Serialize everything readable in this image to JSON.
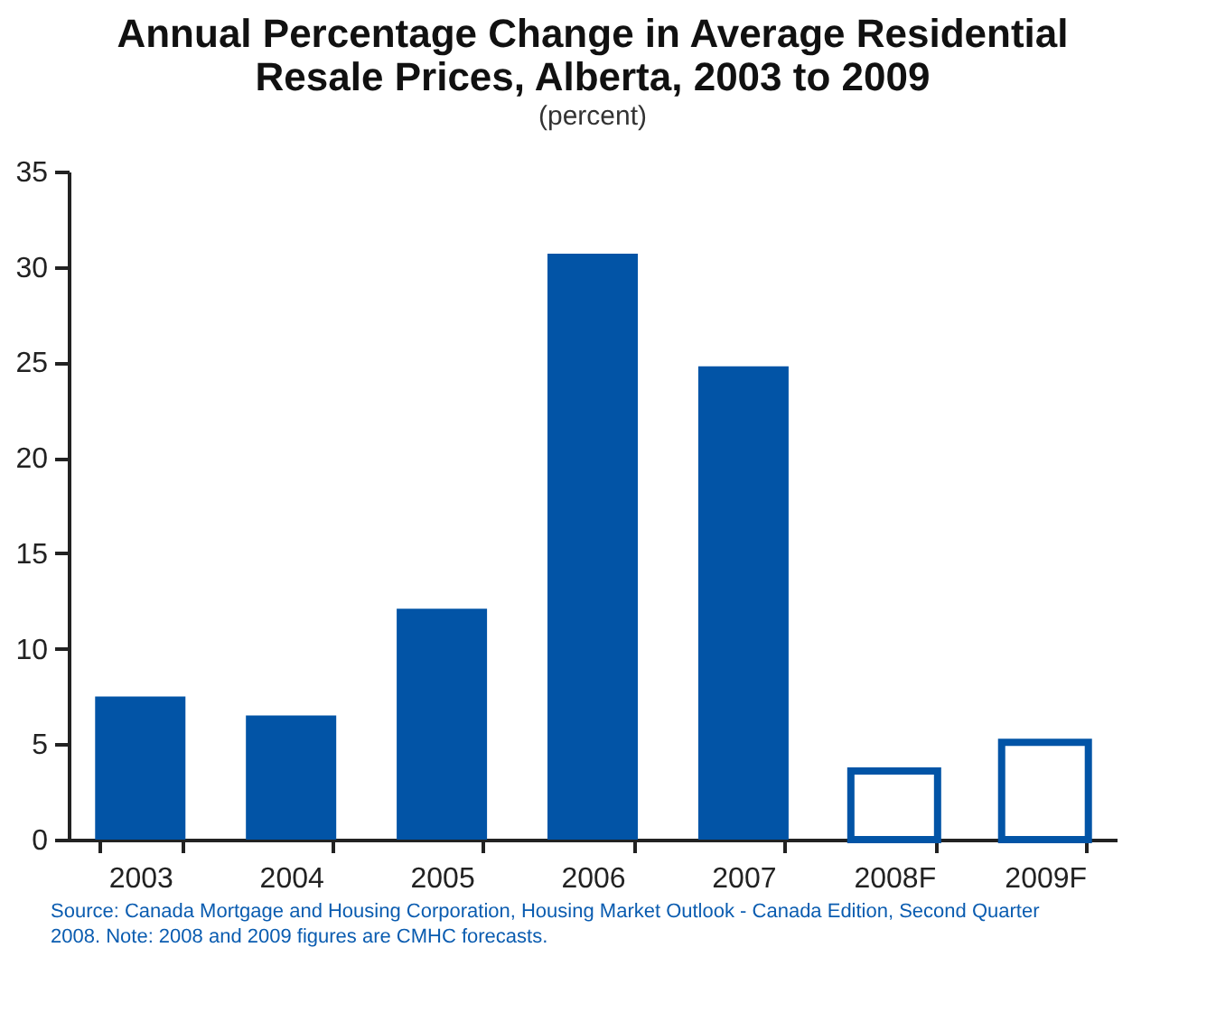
{
  "chart_data": {
    "type": "bar",
    "title": [
      "Annual Percentage Change in Average Residential",
      "Resale Prices, Alberta, 2003 to 2009"
    ],
    "subtitle": "(percent)",
    "categories": [
      "2003",
      "2004",
      "2005",
      "2006",
      "2007",
      "2008F",
      "2009F"
    ],
    "series": [
      {
        "color": "#0254a6",
        "values": [
          7.5,
          6.5,
          12.1,
          30.7,
          24.8,
          null,
          null
        ]
      },
      {
        "color": "#0254a6",
        "values": [
          null,
          null,
          null,
          null,
          null,
          3.6,
          5.1
        ]
      }
    ],
    "ylim": [
      0,
      35
    ],
    "yticks": [
      0,
      5,
      10,
      15,
      20,
      25,
      30,
      35
    ],
    "grid": false,
    "annotations": [
      "Source: Canada Mortgage and Housing Corporation, Housing Market Outlook - Canada Edition, Second Quarter",
      "2008.  Note: 2008 and 2009 figures are CMHC forecasts."
    ]
  }
}
